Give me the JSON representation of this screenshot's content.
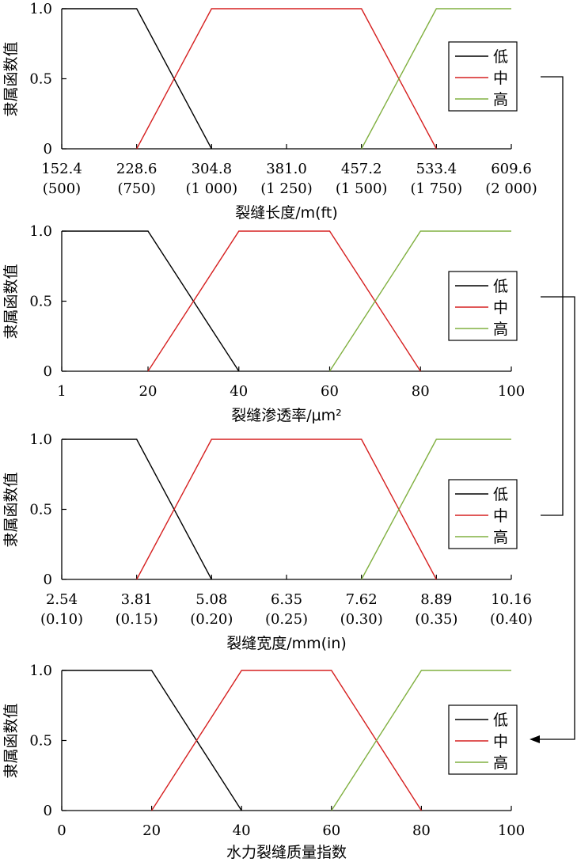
{
  "chart_data": [
    {
      "type": "line",
      "title": "",
      "xlabel": "裂缝长度/m(ft)",
      "ylabel": "隶属函数值",
      "xlim": [
        152.4,
        609.6
      ],
      "ylim": [
        0,
        1
      ],
      "xticks": [
        {
          "v": 152.4,
          "l1": "152.4",
          "l2": "(500)"
        },
        {
          "v": 228.6,
          "l1": "228.6",
          "l2": "(750)"
        },
        {
          "v": 304.8,
          "l1": "304.8",
          "l2": "(1 000)"
        },
        {
          "v": 381.0,
          "l1": "381.0",
          "l2": "(1 250)"
        },
        {
          "v": 457.2,
          "l1": "457.2",
          "l2": "(1 500)"
        },
        {
          "v": 533.4,
          "l1": "533.4",
          "l2": "(1 750)"
        },
        {
          "v": 609.6,
          "l1": "609.6",
          "l2": "(2 000)"
        }
      ],
      "yticks": [
        {
          "v": 0,
          "l": "0"
        },
        {
          "v": 0.5,
          "l": "0.5"
        },
        {
          "v": 1,
          "l": "1.0"
        }
      ],
      "legend_position": "right",
      "series": [
        {
          "name": "低",
          "color": "#000000",
          "points": [
            [
              152.4,
              1
            ],
            [
              228.6,
              1
            ],
            [
              304.8,
              0
            ]
          ]
        },
        {
          "name": "中",
          "color": "#d62020",
          "points": [
            [
              228.6,
              0
            ],
            [
              304.8,
              1
            ],
            [
              457.2,
              1
            ],
            [
              533.4,
              0
            ]
          ]
        },
        {
          "name": "高",
          "color": "#80b040",
          "points": [
            [
              457.2,
              0
            ],
            [
              533.4,
              1
            ],
            [
              609.6,
              1
            ]
          ]
        }
      ]
    },
    {
      "type": "line",
      "title": "",
      "xlabel": "裂缝渗透率/μm²",
      "ylabel": "隶属函数值",
      "xlim": [
        1,
        100
      ],
      "ylim": [
        0,
        1
      ],
      "xticks": [
        {
          "v": 1,
          "l1": "1"
        },
        {
          "v": 20,
          "l1": "20"
        },
        {
          "v": 40,
          "l1": "40"
        },
        {
          "v": 60,
          "l1": "60"
        },
        {
          "v": 80,
          "l1": "80"
        },
        {
          "v": 100,
          "l1": "100"
        }
      ],
      "yticks": [
        {
          "v": 0,
          "l": "0"
        },
        {
          "v": 0.5,
          "l": "0.5"
        },
        {
          "v": 1,
          "l": "1.0"
        }
      ],
      "legend_position": "right",
      "series": [
        {
          "name": "低",
          "color": "#000000",
          "points": [
            [
              1,
              1
            ],
            [
              20,
              1
            ],
            [
              40,
              0
            ]
          ]
        },
        {
          "name": "中",
          "color": "#d62020",
          "points": [
            [
              20,
              0
            ],
            [
              40,
              1
            ],
            [
              60,
              1
            ],
            [
              80,
              0
            ]
          ]
        },
        {
          "name": "高",
          "color": "#80b040",
          "points": [
            [
              60,
              0
            ],
            [
              80,
              1
            ],
            [
              100,
              1
            ]
          ]
        }
      ]
    },
    {
      "type": "line",
      "title": "",
      "xlabel": "裂缝宽度/mm(in)",
      "ylabel": "隶属函数值",
      "xlim": [
        2.54,
        10.16
      ],
      "ylim": [
        0,
        1
      ],
      "xticks": [
        {
          "v": 2.54,
          "l1": "2.54",
          "l2": "(0.10)"
        },
        {
          "v": 3.81,
          "l1": "3.81",
          "l2": "(0.15)"
        },
        {
          "v": 5.08,
          "l1": "5.08",
          "l2": "(0.20)"
        },
        {
          "v": 6.35,
          "l1": "6.35",
          "l2": "(0.25)"
        },
        {
          "v": 7.62,
          "l1": "7.62",
          "l2": "(0.30)"
        },
        {
          "v": 8.89,
          "l1": "8.89",
          "l2": "(0.35)"
        },
        {
          "v": 10.16,
          "l1": "10.16",
          "l2": "(0.40)"
        }
      ],
      "yticks": [
        {
          "v": 0,
          "l": "0"
        },
        {
          "v": 0.5,
          "l": "0.5"
        },
        {
          "v": 1,
          "l": "1.0"
        }
      ],
      "legend_position": "right",
      "series": [
        {
          "name": "低",
          "color": "#000000",
          "points": [
            [
              2.54,
              1
            ],
            [
              3.81,
              1
            ],
            [
              5.08,
              0
            ]
          ]
        },
        {
          "name": "中",
          "color": "#d62020",
          "points": [
            [
              3.81,
              0
            ],
            [
              5.08,
              1
            ],
            [
              7.62,
              1
            ],
            [
              8.89,
              0
            ]
          ]
        },
        {
          "name": "高",
          "color": "#80b040",
          "points": [
            [
              7.62,
              0
            ],
            [
              8.89,
              1
            ],
            [
              10.16,
              1
            ]
          ]
        }
      ]
    },
    {
      "type": "line",
      "title": "",
      "xlabel": "水力裂缝质量指数",
      "ylabel": "隶属函数值",
      "xlim": [
        0,
        100
      ],
      "ylim": [
        0,
        1
      ],
      "xticks": [
        {
          "v": 0,
          "l1": "0"
        },
        {
          "v": 20,
          "l1": "20"
        },
        {
          "v": 40,
          "l1": "40"
        },
        {
          "v": 60,
          "l1": "60"
        },
        {
          "v": 80,
          "l1": "80"
        },
        {
          "v": 100,
          "l1": "100"
        }
      ],
      "yticks": [
        {
          "v": 0,
          "l": "0"
        },
        {
          "v": 0.5,
          "l": "0.5"
        },
        {
          "v": 1,
          "l": "1.0"
        }
      ],
      "legend_position": "right",
      "series": [
        {
          "name": "低",
          "color": "#000000",
          "points": [
            [
              0,
              1
            ],
            [
              20,
              1
            ],
            [
              40,
              0
            ]
          ]
        },
        {
          "name": "中",
          "color": "#d62020",
          "points": [
            [
              20,
              0
            ],
            [
              40,
              1
            ],
            [
              60,
              1
            ],
            [
              80,
              0
            ]
          ]
        },
        {
          "name": "高",
          "color": "#80b040",
          "points": [
            [
              60,
              0
            ],
            [
              80,
              1
            ],
            [
              100,
              1
            ]
          ]
        }
      ]
    }
  ]
}
